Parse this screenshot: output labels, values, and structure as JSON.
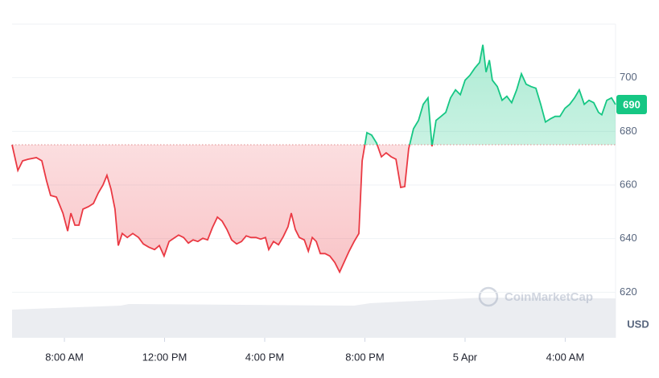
{
  "chart_data": {
    "type": "line",
    "x": [
      5.91,
      6.14,
      6.33,
      6.55,
      6.88,
      7.1,
      7.29,
      7.45,
      7.68,
      7.94,
      8.13,
      8.26,
      8.42,
      8.58,
      8.74,
      8.96,
      9.16,
      9.35,
      9.54,
      9.7,
      9.86,
      10.02,
      10.15,
      10.31,
      10.51,
      10.73,
      10.96,
      11.15,
      11.37,
      11.6,
      11.79,
      11.98,
      12.18,
      12.37,
      12.56,
      12.76,
      12.95,
      13.14,
      13.33,
      13.53,
      13.72,
      13.91,
      14.11,
      14.3,
      14.49,
      14.68,
      14.88,
      15.07,
      15.26,
      15.45,
      15.65,
      15.84,
      16.03,
      16.16,
      16.35,
      16.55,
      16.74,
      16.93,
      17.06,
      17.22,
      17.38,
      17.58,
      17.74,
      17.9,
      18.06,
      18.22,
      18.41,
      18.6,
      18.8,
      18.99,
      19.18,
      19.37,
      19.57,
      19.76,
      19.89,
      20.08,
      20.27,
      20.47,
      20.66,
      20.85,
      21.05,
      21.24,
      21.43,
      21.59,
      21.75,
      21.94,
      22.14,
      22.33,
      22.52,
      22.68,
      22.84,
      23.04,
      23.23,
      23.42,
      23.62,
      23.81,
      24.0,
      24.19,
      24.39,
      24.58,
      24.71,
      24.84,
      24.97,
      25.09,
      25.29,
      25.48,
      25.67,
      25.86,
      26.06,
      26.25,
      26.44,
      26.64,
      26.83,
      27.02,
      27.21,
      27.41,
      27.6,
      27.79,
      27.99,
      28.18,
      28.37,
      28.56,
      28.76,
      28.95,
      29.14,
      29.33,
      29.46,
      29.66,
      29.85,
      30.01
    ],
    "values": [
      675.0,
      665.4,
      669.0,
      669.6,
      670.2,
      669.0,
      661.5,
      656.1,
      655.5,
      649.5,
      642.8,
      649.5,
      645.0,
      645.0,
      651.0,
      651.9,
      653.1,
      657.0,
      660.0,
      663.6,
      658.5,
      651.0,
      637.4,
      641.9,
      640.4,
      641.9,
      640.4,
      638.0,
      636.8,
      635.9,
      637.4,
      633.5,
      638.9,
      640.1,
      641.3,
      640.4,
      638.3,
      639.5,
      638.9,
      640.1,
      639.5,
      644.1,
      648.0,
      646.5,
      643.4,
      639.5,
      638.0,
      638.9,
      641.0,
      640.4,
      640.4,
      639.8,
      640.4,
      635.9,
      638.9,
      637.7,
      640.7,
      644.4,
      649.5,
      643.4,
      640.4,
      639.5,
      635.3,
      640.4,
      638.9,
      634.4,
      634.4,
      633.5,
      631.1,
      627.5,
      631.4,
      635.3,
      638.9,
      641.9,
      669.0,
      679.5,
      678.6,
      675.6,
      670.5,
      672.0,
      670.5,
      669.6,
      659.1,
      659.4,
      673.5,
      681.0,
      684.1,
      690.1,
      692.5,
      674.4,
      684.1,
      685.6,
      687.1,
      692.5,
      695.5,
      693.7,
      699.1,
      700.9,
      703.6,
      705.7,
      712.3,
      702.1,
      706.6,
      699.1,
      696.7,
      691.6,
      693.1,
      690.7,
      695.5,
      701.5,
      697.6,
      696.7,
      696.1,
      690.1,
      683.5,
      684.7,
      685.6,
      685.6,
      688.6,
      690.1,
      692.5,
      695.5,
      690.1,
      691.6,
      690.7,
      687.1,
      686.2,
      691.6,
      692.5,
      690
    ],
    "baseline": 675,
    "up_color": "#16c784",
    "down_color": "#ea3943",
    "xlim": [
      5.91,
      30.01
    ],
    "xticks": [
      {
        "value": 8,
        "label": "8:00 AM"
      },
      {
        "value": 12,
        "label": "12:00 PM"
      },
      {
        "value": 16,
        "label": "4:00 PM"
      },
      {
        "value": 20,
        "label": "8:00 PM"
      },
      {
        "value": 24,
        "label": "5 Apr"
      },
      {
        "value": 28,
        "label": "4:00 AM"
      }
    ],
    "ylim": [
      603,
      720
    ],
    "yticks": [
      620,
      640,
      660,
      680,
      700
    ],
    "grid": true,
    "y_axis_label": "USD",
    "watermark": "CoinMarketCap"
  }
}
